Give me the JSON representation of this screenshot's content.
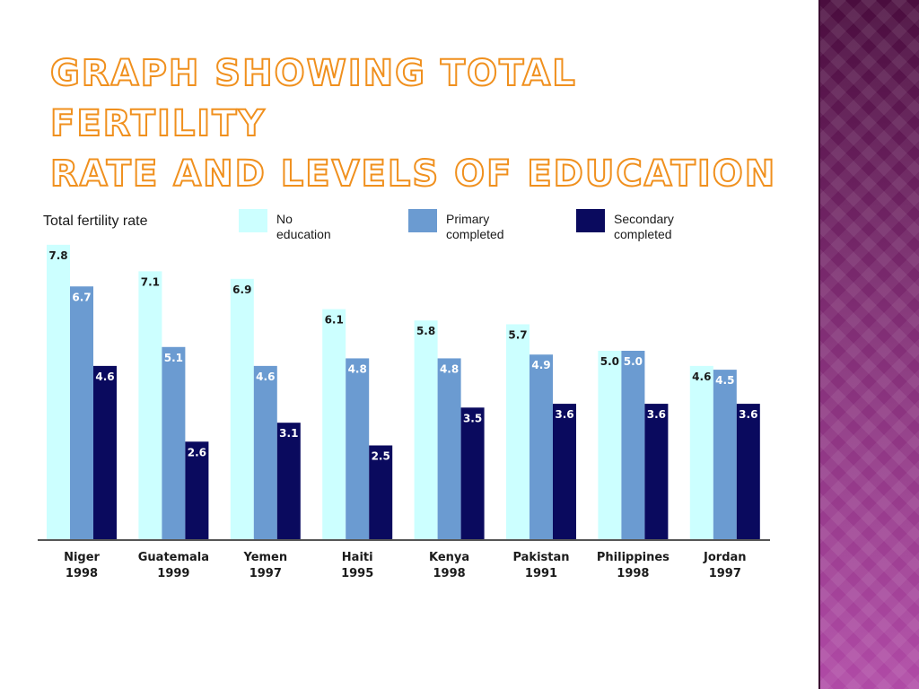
{
  "slide": {
    "title_line1": "Graph showing Total fertility",
    "title_line2": "rate and levels of education",
    "title_color": "#f0901e",
    "side_panel_color": "#7a2a6e"
  },
  "chart_data": {
    "type": "bar",
    "ylabel": "Total fertility rate",
    "ylim": [
      0,
      8
    ],
    "grid": false,
    "legend_placement": "top",
    "categories": [
      [
        "Niger",
        "1998"
      ],
      [
        "Guatemala",
        "1999"
      ],
      [
        "Yemen",
        "1997"
      ],
      [
        "Haiti",
        "1995"
      ],
      [
        "Kenya",
        "1998"
      ],
      [
        "Pakistan",
        "1991"
      ],
      [
        "Philippines",
        "1998"
      ],
      [
        "Jordan",
        "1997"
      ]
    ],
    "series": [
      {
        "name": [
          "No",
          "education"
        ],
        "color": "#ccffff",
        "label_color": "#1b1b1b",
        "values": [
          7.8,
          7.1,
          6.9,
          6.1,
          5.8,
          5.7,
          5.0,
          4.6
        ],
        "labels": [
          "7.8",
          "7.1",
          "6.9",
          "6.1",
          "5.8",
          "5.7",
          "5.0",
          "4.6"
        ]
      },
      {
        "name": [
          "Primary",
          "completed"
        ],
        "color": "#6b9bd1",
        "label_color": "#ffffff",
        "values": [
          6.7,
          5.1,
          4.6,
          4.8,
          4.8,
          4.9,
          5.0,
          4.5
        ],
        "labels": [
          "6.7",
          "5.1",
          "4.6",
          "4.8",
          "4.8",
          "4.9",
          "5.0",
          "4.5"
        ]
      },
      {
        "name": [
          "Secondary",
          "completed"
        ],
        "color": "#0a0a5e",
        "label_color": "#ffffff",
        "values": [
          4.6,
          2.6,
          3.1,
          2.5,
          3.5,
          3.6,
          3.6,
          3.6
        ],
        "labels": [
          "4.6",
          "2.6",
          "3.1",
          "2.5",
          "3.5",
          "3.6",
          "3.6",
          "3.6"
        ]
      }
    ]
  }
}
